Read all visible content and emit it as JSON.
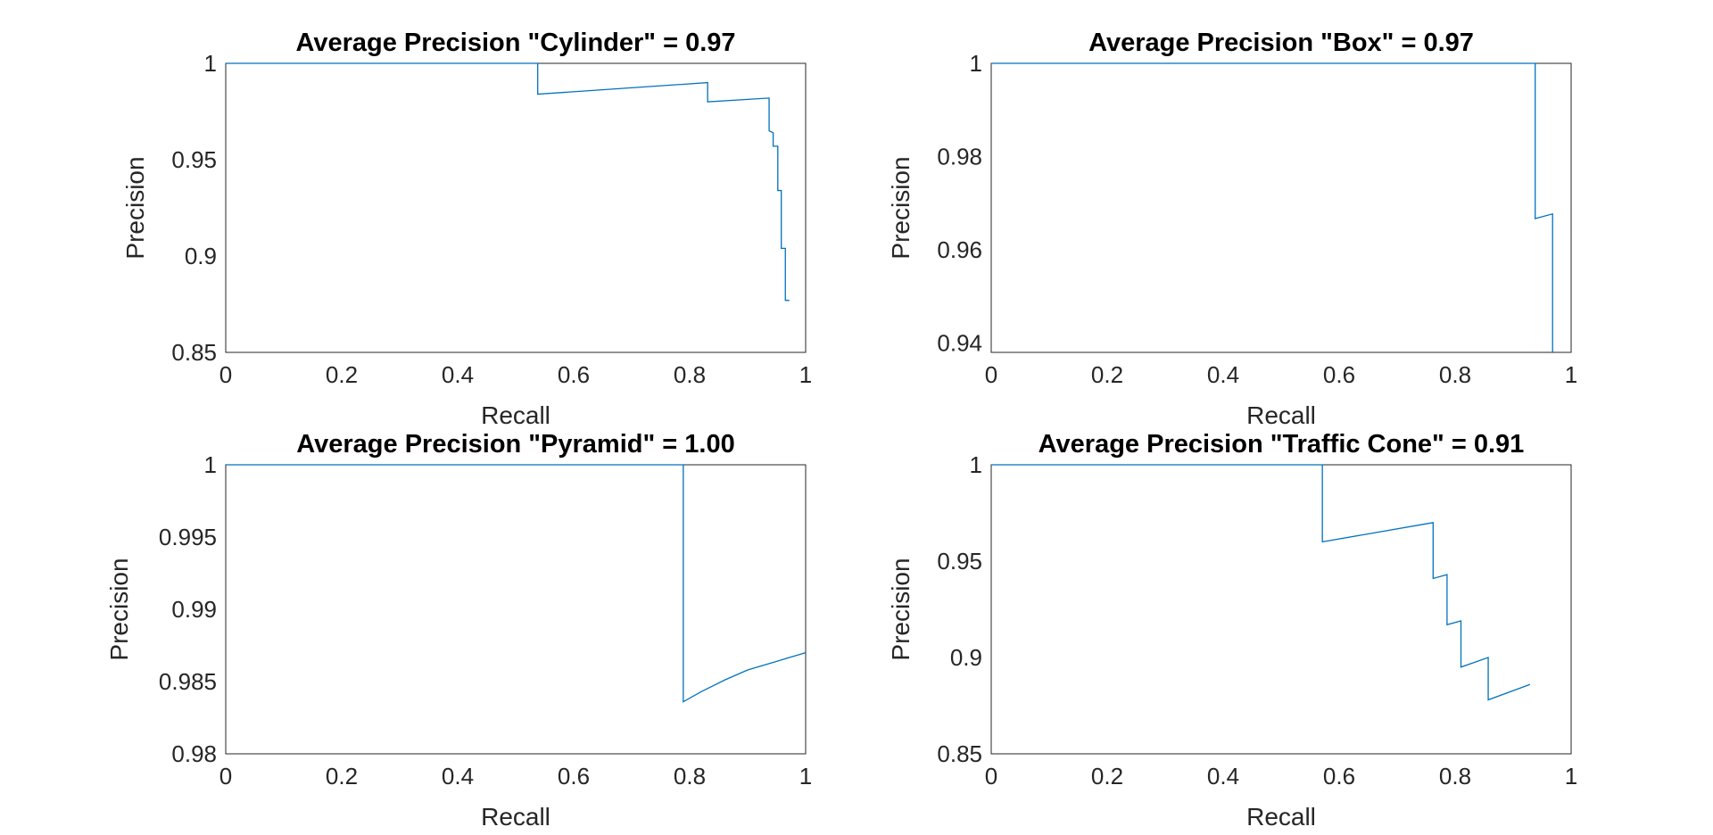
{
  "chart_data": [
    {
      "type": "line",
      "title": "Average Precision \"Cylinder\" = 0.97",
      "xlabel": "Recall",
      "ylabel": "Precision",
      "xlim": [
        0,
        1
      ],
      "ylim": [
        0.85,
        1
      ],
      "xticks": [
        "0",
        "0.2",
        "0.4",
        "0.6",
        "0.8",
        "1"
      ],
      "xtick_values": [
        0,
        0.2,
        0.4,
        0.6,
        0.8,
        1
      ],
      "yticks": [
        "0.85",
        "0.9",
        "0.95",
        "1"
      ],
      "ytick_values": [
        0.85,
        0.9,
        0.95,
        1
      ],
      "grid": true,
      "color": "#0072BD",
      "series": [
        {
          "x": [
            0,
            0.538,
            0.538,
            0.831,
            0.831,
            0.937,
            0.937,
            0.944,
            0.944,
            0.952,
            0.952,
            0.958,
            0.958,
            0.965,
            0.965,
            0.972
          ],
          "y": [
            1,
            1,
            0.984,
            0.99,
            0.98,
            0.982,
            0.965,
            0.964,
            0.957,
            0.957,
            0.934,
            0.934,
            0.904,
            0.904,
            0.877,
            0.877
          ]
        }
      ]
    },
    {
      "type": "line",
      "title": "Average Precision \"Box\" = 0.97",
      "xlabel": "Recall",
      "ylabel": "Precision",
      "xlim": [
        0,
        1
      ],
      "ylim": [
        0.938,
        1
      ],
      "xticks": [
        "0",
        "0.2",
        "0.4",
        "0.6",
        "0.8",
        "1"
      ],
      "xtick_values": [
        0,
        0.2,
        0.4,
        0.6,
        0.8,
        1
      ],
      "yticks": [
        "0.94",
        "0.96",
        "0.98",
        "1"
      ],
      "ytick_values": [
        0.94,
        0.96,
        0.98,
        1
      ],
      "grid": true,
      "color": "#0072BD",
      "series": [
        {
          "x": [
            0,
            0.938,
            0.938,
            0.968,
            0.968
          ],
          "y": [
            1,
            1,
            0.9667,
            0.9677,
            0.938
          ]
        }
      ]
    },
    {
      "type": "line",
      "title": "Average Precision \"Pyramid\" = 1.00",
      "xlabel": "Recall",
      "ylabel": "Precision",
      "xlim": [
        0,
        1
      ],
      "ylim": [
        0.98,
        1
      ],
      "xticks": [
        "0",
        "0.2",
        "0.4",
        "0.6",
        "0.8",
        "1"
      ],
      "xtick_values": [
        0,
        0.2,
        0.4,
        0.6,
        0.8,
        1
      ],
      "yticks": [
        "0.98",
        "0.985",
        "0.99",
        "0.995",
        "1"
      ],
      "ytick_values": [
        0.98,
        0.985,
        0.99,
        0.995,
        1
      ],
      "grid": true,
      "color": "#0072BD",
      "series": [
        {
          "x": [
            0,
            0.789,
            0.789,
            0.82,
            0.86,
            0.9,
            0.95,
            1
          ],
          "y": [
            1,
            1,
            0.9836,
            0.9843,
            0.9851,
            0.9858,
            0.9864,
            0.987
          ]
        }
      ]
    },
    {
      "type": "line",
      "title": "Average Precision \"Traffic Cone\" = 0.91",
      "xlabel": "Recall",
      "ylabel": "Precision",
      "xlim": [
        0,
        1
      ],
      "ylim": [
        0.85,
        1
      ],
      "xticks": [
        "0",
        "0.2",
        "0.4",
        "0.6",
        "0.8",
        "1"
      ],
      "xtick_values": [
        0,
        0.2,
        0.4,
        0.6,
        0.8,
        1
      ],
      "yticks": [
        "0.85",
        "0.9",
        "0.95",
        "1"
      ],
      "ytick_values": [
        0.85,
        0.9,
        0.95,
        1
      ],
      "grid": true,
      "color": "#0072BD",
      "series": [
        {
          "x": [
            0,
            0.571,
            0.571,
            0.762,
            0.762,
            0.786,
            0.786,
            0.81,
            0.81,
            0.857,
            0.857,
            0.929
          ],
          "y": [
            1,
            1,
            0.96,
            0.97,
            0.941,
            0.943,
            0.917,
            0.919,
            0.895,
            0.9,
            0.878,
            0.886
          ]
        }
      ]
    }
  ]
}
